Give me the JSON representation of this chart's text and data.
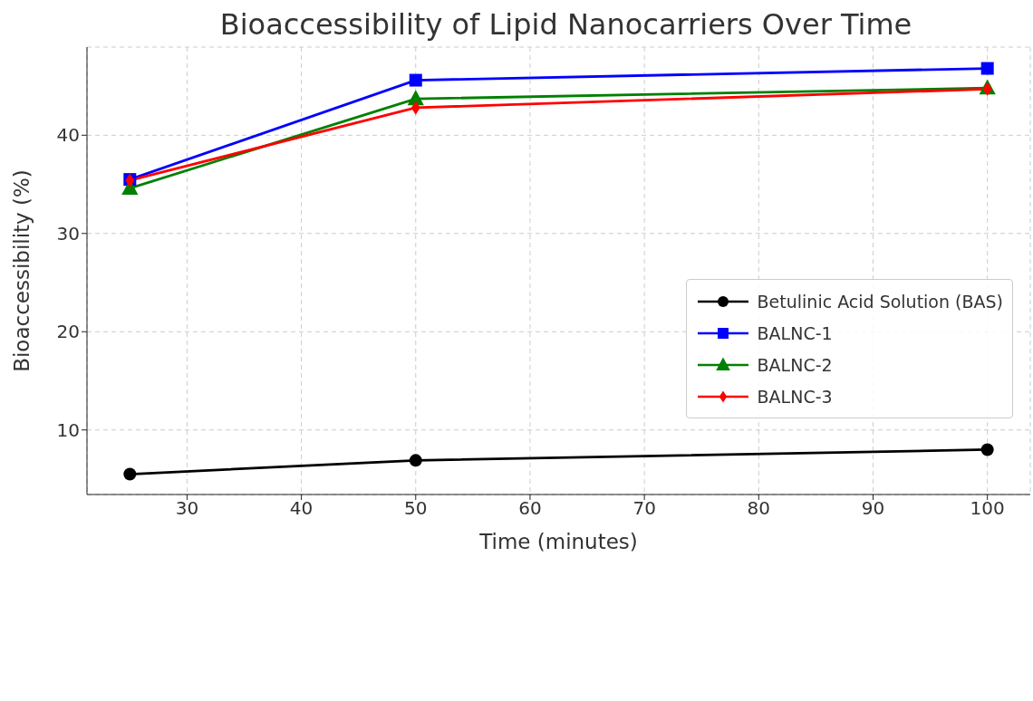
{
  "chart_data": {
    "type": "line",
    "title": "Bioaccessibility of Lipid Nanocarriers Over Time",
    "xlabel": "Time (minutes)",
    "ylabel": "Bioaccessibility (%)",
    "x": [
      25,
      50,
      100
    ],
    "series": [
      {
        "name": "Betulinic Acid Solution (BAS)",
        "color": "#000000",
        "marker": "circle",
        "values": [
          5.5,
          6.9,
          8.0
        ]
      },
      {
        "name": "BALNC-1",
        "color": "#0000ff",
        "marker": "square",
        "values": [
          35.5,
          45.6,
          46.8
        ]
      },
      {
        "name": "BALNC-2",
        "color": "#008000",
        "marker": "triangle",
        "values": [
          34.6,
          43.7,
          44.8
        ]
      },
      {
        "name": "BALNC-3",
        "color": "#ff0000",
        "marker": "diamond",
        "values": [
          35.4,
          42.8,
          44.7
        ]
      }
    ],
    "xlim": [
      21.25,
      103.75
    ],
    "xticks": [
      30,
      40,
      50,
      60,
      70,
      80,
      90,
      100
    ],
    "ylim": [
      3.43,
      48.97
    ],
    "yticks": [
      10,
      20,
      30,
      40
    ],
    "grid": true,
    "legend": "center right",
    "line_style": "solid"
  }
}
